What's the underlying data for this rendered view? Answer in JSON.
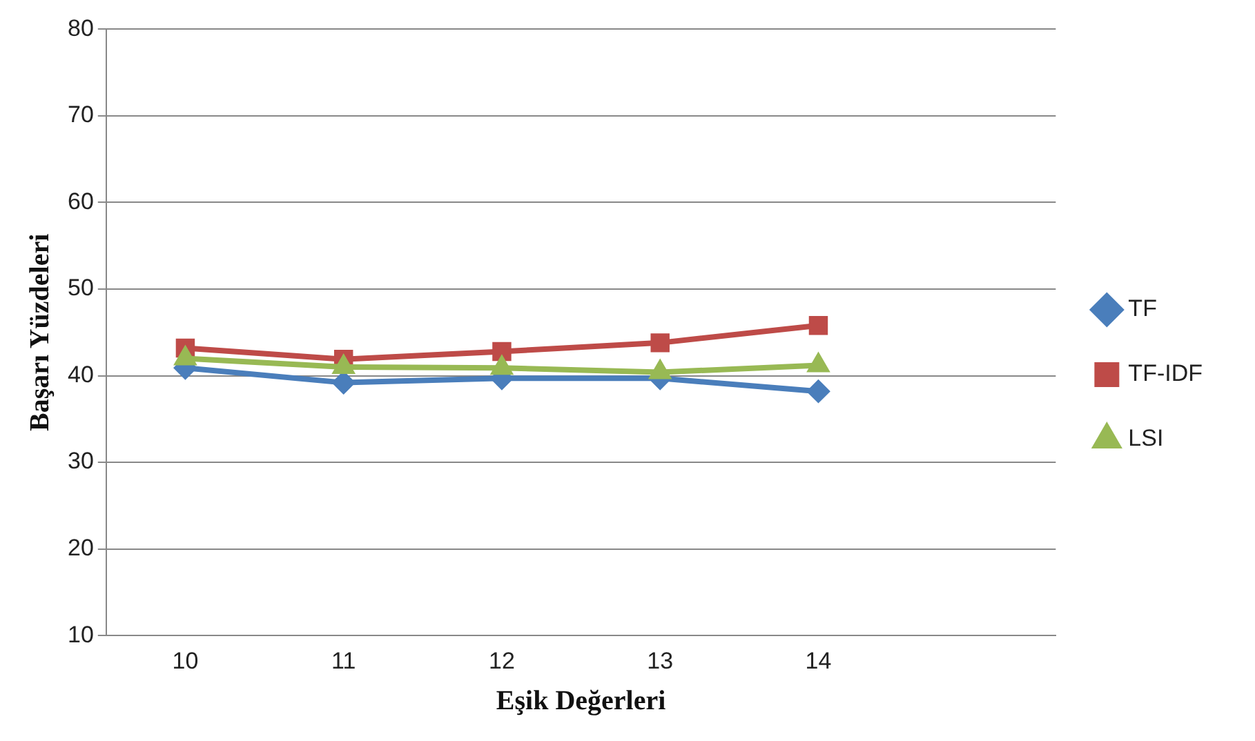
{
  "chart_data": {
    "type": "line",
    "xlabel": "Eşik Değerleri",
    "ylabel": "Başarı Yüzdeleri",
    "categories": [
      "10",
      "11",
      "12",
      "13",
      "14",
      null
    ],
    "series": [
      {
        "name": "TF",
        "color": "#4a7ebb",
        "marker": "diamond",
        "values": [
          40.9,
          39.2,
          39.7,
          39.7,
          38.2,
          null
        ]
      },
      {
        "name": "TF-IDF",
        "color": "#be4b48",
        "marker": "square",
        "values": [
          43.2,
          41.9,
          42.8,
          43.8,
          45.8,
          null
        ]
      },
      {
        "name": "LSI",
        "color": "#98b954",
        "marker": "triangle",
        "values": [
          42.0,
          41.0,
          40.9,
          40.4,
          41.2,
          null
        ]
      }
    ],
    "ylim": [
      10,
      80
    ],
    "yticks": [
      10,
      20,
      30,
      40,
      50,
      60,
      70,
      80
    ],
    "grid": "y",
    "legend": "right",
    "line_style": "solid"
  }
}
